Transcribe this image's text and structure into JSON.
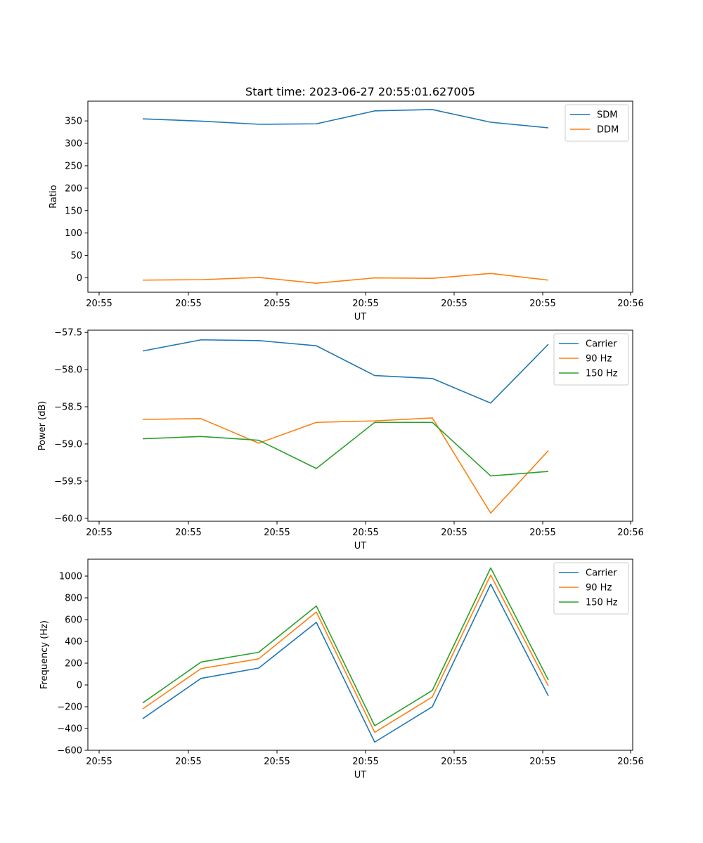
{
  "figure": {
    "title": "Start time: 2023-06-27 20:55:01.627005"
  },
  "chart_data": [
    {
      "type": "line",
      "title": "Start time: 2023-06-27 20:55:01.627005",
      "xlabel": "UT",
      "ylabel": "Ratio",
      "x_tick_labels": [
        "20:55",
        "20:55",
        "20:55",
        "20:55",
        "20:55",
        "20:55",
        "20:56"
      ],
      "y_ticks": [
        0,
        50,
        100,
        150,
        200,
        250,
        300,
        350
      ],
      "y_tick_labels": [
        "0",
        "50",
        "100",
        "150",
        "200",
        "250",
        "300",
        "350"
      ],
      "ylim": [
        -32,
        394
      ],
      "legend_position": "top-right",
      "grid": false,
      "series": [
        {
          "name": "SDM",
          "color": "#1f77b4",
          "values": [
            354.5,
            349.5,
            342.5,
            343.5,
            372.3,
            375.3,
            347.0,
            334.5
          ]
        },
        {
          "name": "DDM",
          "color": "#ff7f0e",
          "values": [
            -5.0,
            -4.0,
            1.0,
            -12.0,
            0.0,
            -1.0,
            10.0,
            -5.0
          ]
        }
      ]
    },
    {
      "type": "line",
      "title": "",
      "xlabel": "UT",
      "ylabel": "Power (dB)",
      "x_tick_labels": [
        "20:55",
        "20:55",
        "20:55",
        "20:55",
        "20:55",
        "20:55",
        "20:56"
      ],
      "y_ticks": [
        -57.5,
        -58.0,
        -58.5,
        -59.0,
        -59.5,
        -60.0
      ],
      "y_tick_labels": [
        "−57.5",
        "−58.0",
        "−58.5",
        "−59.0",
        "−59.5",
        "−60.0"
      ],
      "ylim": [
        -60.04,
        -57.47
      ],
      "legend_position": "top-right",
      "grid": false,
      "series": [
        {
          "name": "Carrier",
          "color": "#1f77b4",
          "values": [
            -57.75,
            -57.6,
            -57.61,
            -57.68,
            -58.08,
            -58.12,
            -58.45,
            -57.66
          ]
        },
        {
          "name": "90 Hz",
          "color": "#ff7f0e",
          "values": [
            -58.67,
            -58.66,
            -58.99,
            -58.71,
            -58.69,
            -58.65,
            -59.93,
            -59.09
          ]
        },
        {
          "name": "150 Hz",
          "color": "#2ca02c",
          "values": [
            -58.93,
            -58.9,
            -58.95,
            -59.33,
            -58.71,
            -58.71,
            -59.43,
            -59.37
          ]
        }
      ]
    },
    {
      "type": "line",
      "title": "",
      "xlabel": "UT",
      "ylabel": "Frequency (Hz)",
      "x_tick_labels": [
        "20:55",
        "20:55",
        "20:55",
        "20:55",
        "20:55",
        "20:55",
        "20:56"
      ],
      "y_ticks": [
        -600,
        -400,
        -200,
        0,
        200,
        400,
        600,
        800,
        1000
      ],
      "y_tick_labels": [
        "−600",
        "−400",
        "−200",
        "0",
        "200",
        "400",
        "600",
        "800",
        "1000"
      ],
      "ylim": [
        -600,
        1155
      ],
      "legend_position": "top-right",
      "grid": false,
      "series": [
        {
          "name": "Carrier",
          "color": "#1f77b4",
          "values": [
            -310,
            60,
            155,
            575,
            -525,
            -200,
            925,
            -100
          ]
        },
        {
          "name": "90 Hz",
          "color": "#ff7f0e",
          "values": [
            -220,
            150,
            240,
            670,
            -435,
            -110,
            1010,
            -10
          ]
        },
        {
          "name": "150 Hz",
          "color": "#2ca02c",
          "values": [
            -165,
            210,
            300,
            725,
            -375,
            -50,
            1075,
            45
          ]
        }
      ]
    }
  ]
}
